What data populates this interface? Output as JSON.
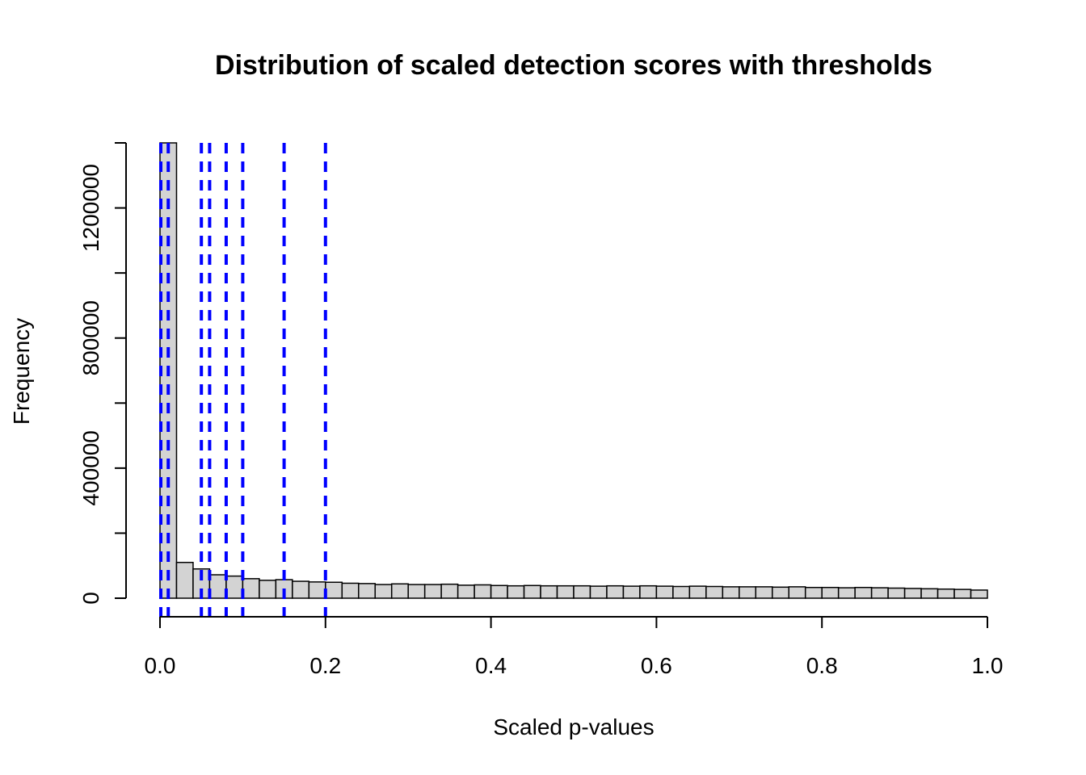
{
  "chart_data": {
    "type": "bar",
    "title": "Distribution of scaled detection scores with thresholds",
    "xlabel": "Scaled p-values",
    "ylabel": "Frequency",
    "xlim": [
      0,
      1
    ],
    "ylim": [
      0,
      1400000
    ],
    "bin_width": 0.02,
    "x_ticks": [
      0.0,
      0.2,
      0.4,
      0.6,
      0.8,
      1.0
    ],
    "x_tick_labels": [
      "0.0",
      "0.2",
      "0.4",
      "0.6",
      "0.8",
      "1.0"
    ],
    "y_ticks": [
      0,
      200000,
      400000,
      600000,
      800000,
      1000000,
      1200000,
      1400000
    ],
    "y_tick_labels": [
      "0",
      "",
      "400000",
      "",
      "800000",
      "",
      "1200000",
      ""
    ],
    "bins_start": [
      0.0,
      0.02,
      0.04,
      0.06,
      0.08,
      0.1,
      0.12,
      0.14,
      0.16,
      0.18,
      0.2,
      0.22,
      0.24,
      0.26,
      0.28,
      0.3,
      0.32,
      0.34,
      0.36,
      0.38,
      0.4,
      0.42,
      0.44,
      0.46,
      0.48,
      0.5,
      0.52,
      0.54,
      0.56,
      0.58,
      0.6,
      0.62,
      0.64,
      0.66,
      0.68,
      0.7,
      0.72,
      0.74,
      0.76,
      0.78,
      0.8,
      0.82,
      0.84,
      0.86,
      0.88,
      0.9,
      0.92,
      0.94,
      0.96,
      0.98
    ],
    "values": [
      1400000,
      110000,
      90000,
      72000,
      68000,
      60000,
      55000,
      57000,
      52000,
      50000,
      49000,
      46000,
      45000,
      42000,
      44000,
      42000,
      42000,
      43000,
      40000,
      41000,
      39000,
      38000,
      39000,
      38000,
      38000,
      38000,
      37000,
      38000,
      37000,
      38000,
      37000,
      36000,
      37000,
      36000,
      35000,
      35000,
      35000,
      34000,
      35000,
      33000,
      33000,
      32000,
      33000,
      32000,
      31000,
      30000,
      29000,
      28000,
      27000,
      25000
    ],
    "thresholds": [
      0.001,
      0.01,
      0.05,
      0.06,
      0.08,
      0.1,
      0.15,
      0.2
    ],
    "colors": {
      "bar_fill": "#d3d3d3",
      "bar_stroke": "#000000",
      "threshold": "#0000ff"
    },
    "grid": false,
    "legend": "none"
  }
}
